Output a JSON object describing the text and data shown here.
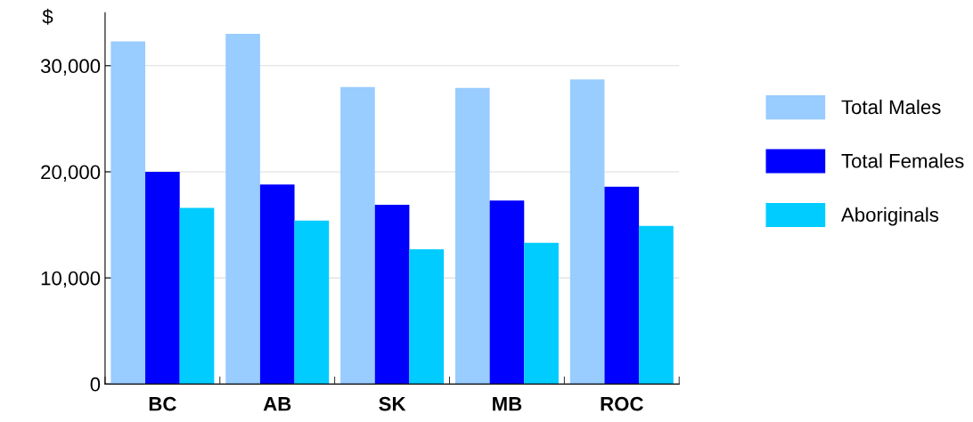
{
  "chart_data": {
    "type": "bar",
    "ylabel": "$",
    "categories": [
      "BC",
      "AB",
      "SK",
      "MB",
      "ROC"
    ],
    "series": [
      {
        "name": "Total Males",
        "color": "#99ccff",
        "values": [
          32300,
          33000,
          28000,
          27900,
          28700
        ]
      },
      {
        "name": "Total Females",
        "color": "#0000ff",
        "values": [
          20000,
          18800,
          16900,
          17300,
          18600
        ]
      },
      {
        "name": "Aboriginals",
        "color": "#00ccff",
        "values": [
          16600,
          15400,
          12700,
          13300,
          14900
        ]
      }
    ],
    "ylim": [
      0,
      35000
    ],
    "yticks": [
      {
        "value": 0,
        "label": "0"
      },
      {
        "value": 10000,
        "label": "10,000"
      },
      {
        "value": 20000,
        "label": "20,000"
      },
      {
        "value": 30000,
        "label": "30,000"
      }
    ],
    "grid": "y",
    "legend": "right"
  }
}
